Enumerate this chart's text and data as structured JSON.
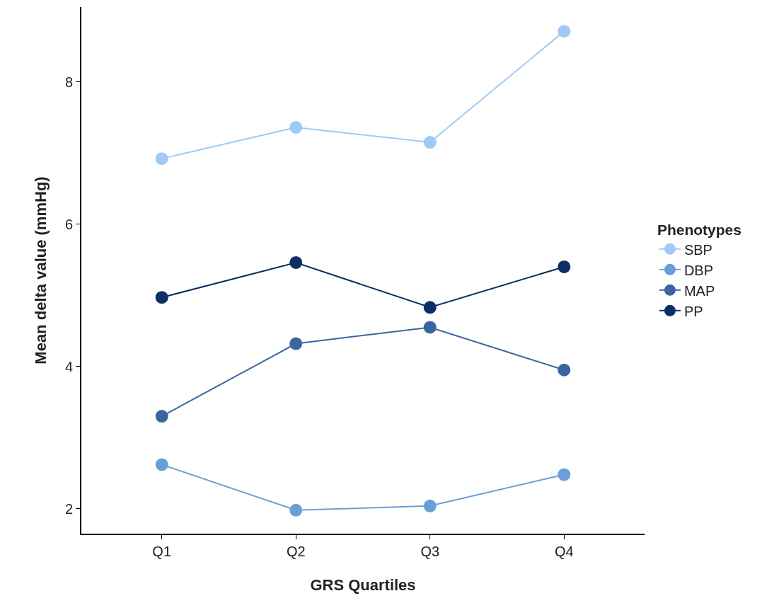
{
  "chart_data": {
    "type": "line",
    "xlabel": "GRS Quartiles",
    "ylabel": "Mean delta value (mmHg)",
    "legend_title": "Phenotypes",
    "categories": [
      "Q1",
      "Q2",
      "Q3",
      "Q4"
    ],
    "series": [
      {
        "name": "SBP",
        "color": "#9ecbf5",
        "values": [
          6.92,
          7.36,
          7.15,
          8.71
        ]
      },
      {
        "name": "DBP",
        "color": "#6a9fd6",
        "values": [
          2.62,
          1.98,
          2.04,
          2.48
        ]
      },
      {
        "name": "MAP",
        "color": "#3a65a0",
        "values": [
          3.3,
          4.32,
          4.55,
          3.95
        ]
      },
      {
        "name": "PP",
        "color": "#0b2f63",
        "values": [
          4.97,
          5.46,
          4.83,
          5.4
        ]
      }
    ],
    "ylim": [
      1.65,
      9.05
    ],
    "yticks": [
      2,
      4,
      6,
      8
    ],
    "grid": false,
    "legend": "right",
    "marker": "circle",
    "line_style": "solid"
  }
}
